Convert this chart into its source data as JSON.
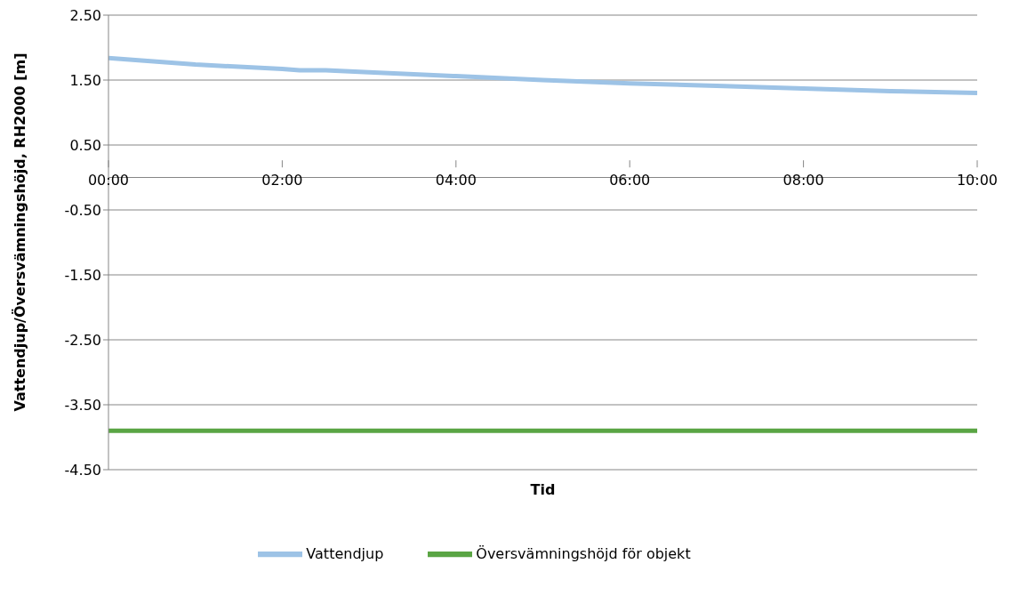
{
  "chart_data": {
    "type": "line",
    "xlabel": "Tid",
    "ylabel": "Vattendjup/Översvämningshöjd, RH2000 [m]",
    "x": [
      0,
      1,
      2,
      2.2,
      2.5,
      3,
      4,
      5,
      6,
      7,
      8,
      9,
      10
    ],
    "series": [
      {
        "name": "Vattendjup",
        "color": "#9dc3e6",
        "values": [
          1.84,
          1.74,
          1.67,
          1.65,
          1.65,
          1.62,
          1.56,
          1.5,
          1.45,
          1.41,
          1.37,
          1.33,
          1.3
        ]
      },
      {
        "name": "Översvämningshöjd för objekt",
        "color": "#5aa544",
        "values": [
          -3.9,
          -3.9,
          -3.9,
          -3.9,
          -3.9,
          -3.9,
          -3.9,
          -3.9,
          -3.9,
          -3.9,
          -3.9,
          -3.9,
          -3.9
        ]
      }
    ],
    "xlim": [
      0,
      10
    ],
    "xticks": [
      {
        "value": 0,
        "label": "00:00"
      },
      {
        "value": 2,
        "label": "02:00"
      },
      {
        "value": 4,
        "label": "04:00"
      },
      {
        "value": 6,
        "label": "06:00"
      },
      {
        "value": 8,
        "label": "08:00"
      },
      {
        "value": 10,
        "label": "10:00"
      }
    ],
    "ylim": [
      -4.5,
      2.5
    ],
    "yticks": [
      {
        "value": -4.5,
        "label": "-4.50"
      },
      {
        "value": -3.5,
        "label": "-3.50"
      },
      {
        "value": -2.5,
        "label": "-2.50"
      },
      {
        "value": -1.5,
        "label": "-1.50"
      },
      {
        "value": -0.5,
        "label": "-0.50"
      },
      {
        "value": 0.5,
        "label": "0.50"
      },
      {
        "value": 1.5,
        "label": "1.50"
      },
      {
        "value": 2.5,
        "label": "2.50"
      }
    ],
    "grid": "y",
    "legend": "bottom",
    "marker": "none",
    "line_style": "solid"
  }
}
